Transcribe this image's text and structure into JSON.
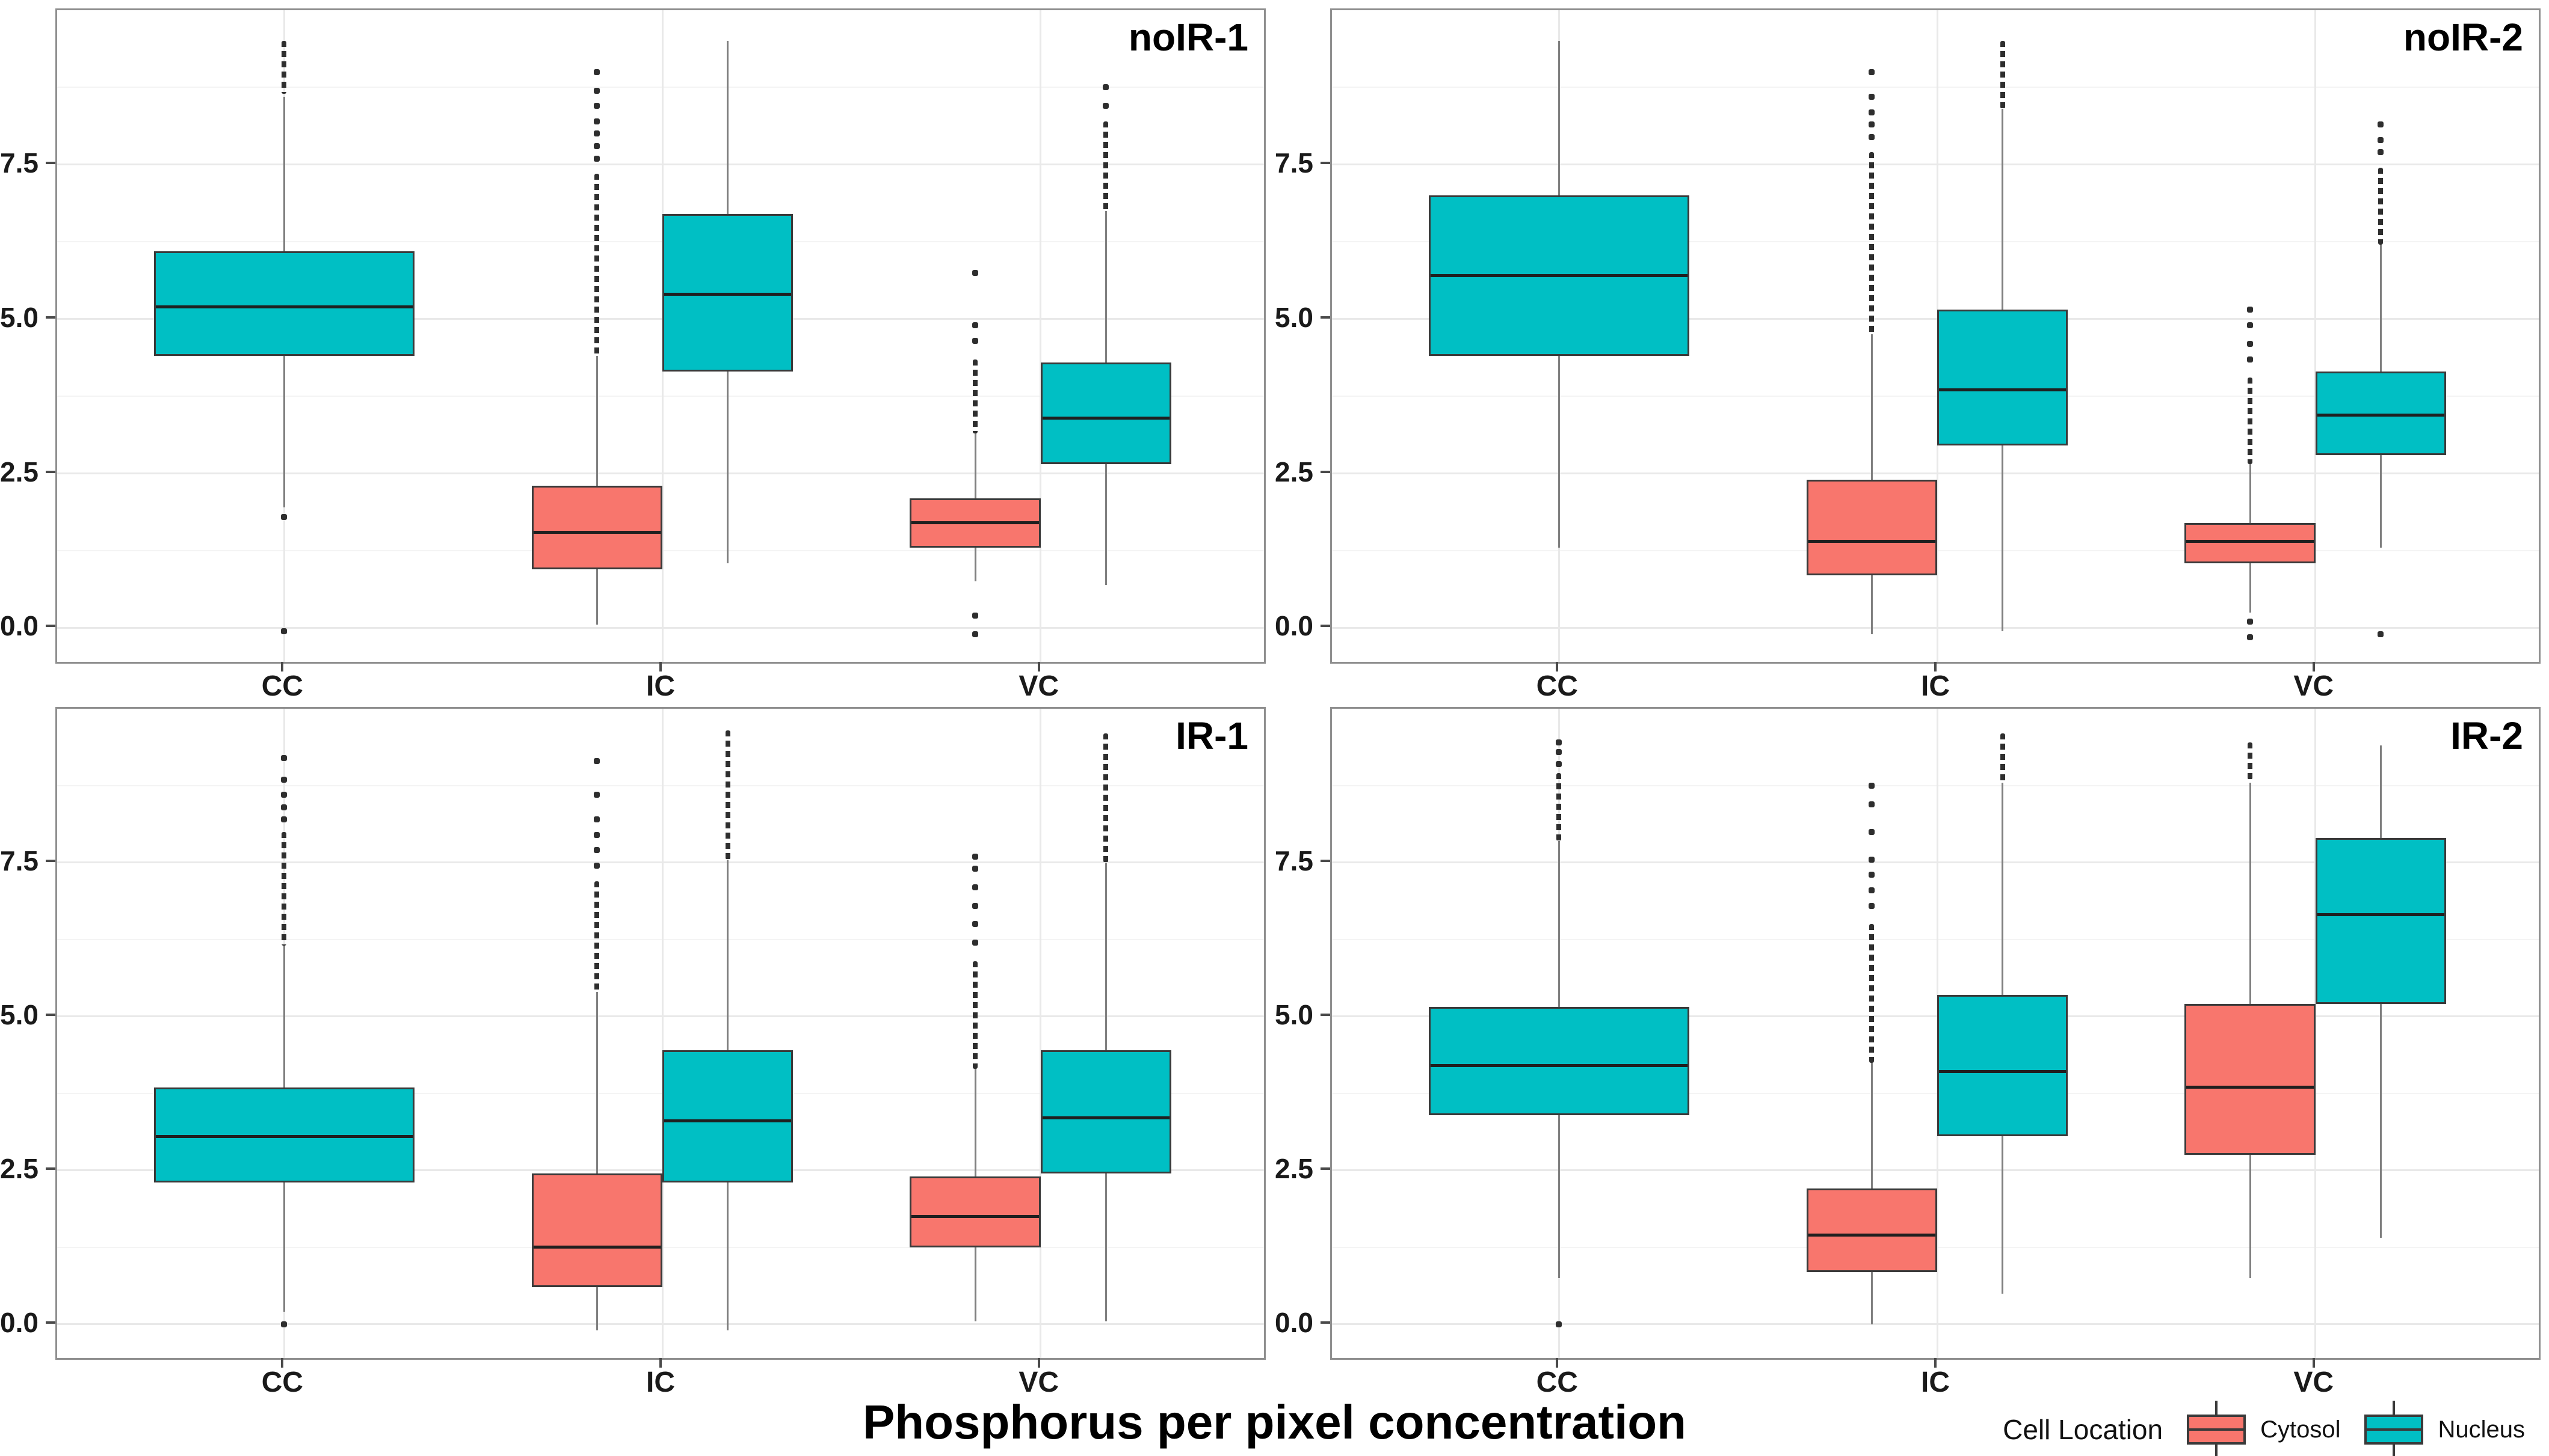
{
  "figure": {
    "x_axis_title": "Phosphorus per pixel concentration",
    "colors": {
      "cytosol": "#F8766D",
      "nucleus": "#00BFC4",
      "box_border": "#3a3a3a",
      "whisker": "#808080",
      "outlier": "#2e2e2e",
      "grid_major": "#e9e9e9",
      "grid_minor": "#f4f4f4",
      "panel_border": "#8f8f8f"
    },
    "legend": {
      "title": "Cell Location",
      "items": [
        {
          "label": "Cytosol",
          "color_key": "cytosol"
        },
        {
          "label": "Nucleus",
          "color_key": "nucleus"
        }
      ]
    }
  },
  "chart_data": {
    "type": "boxplot",
    "title": "",
    "xlabel": "Phosphorus per pixel concentration",
    "ylabel": "",
    "ylim": [
      -0.55,
      10.0
    ],
    "categories": [
      "CC",
      "IC",
      "VC"
    ],
    "series_names": [
      "Cytosol",
      "Nucleus"
    ],
    "y_ticks": [
      {
        "value": 7.5,
        "label": "7.5"
      },
      {
        "value": 5.0,
        "label": "5.0"
      },
      {
        "value": 2.5,
        "label": "2.5"
      },
      {
        "value": 0.0,
        "label": "0.0"
      }
    ],
    "y_minor_gridlines": [
      1.25,
      3.75,
      6.25,
      8.75
    ],
    "legend_position": "bottom-right",
    "grid": "faint major and minor horizontal, major vertical at category centers",
    "facets": [
      {
        "title": "noIR-1",
        "boxes": [
          {
            "category": "CC",
            "series": "Nucleus",
            "whisker_low": 1.95,
            "q1": 4.4,
            "median": 5.2,
            "q3": 6.1,
            "whisker_high": 8.6,
            "outlier_runs": [
              [
                8.65,
                9.5
              ]
            ],
            "outlier_points": [
              1.8,
              -0.05
            ]
          },
          {
            "category": "IC",
            "series": "Cytosol",
            "whisker_low": 0.05,
            "q1": 0.95,
            "median": 1.55,
            "q3": 2.3,
            "whisker_high": 4.4,
            "outlier_runs": [
              [
                4.4,
                7.35
              ]
            ],
            "outlier_points": [
              7.6,
              7.8,
              8.0,
              8.2,
              8.45,
              8.7,
              9.0
            ]
          },
          {
            "category": "IC",
            "series": "Nucleus",
            "whisker_low": 1.05,
            "q1": 4.15,
            "median": 5.4,
            "q3": 6.7,
            "whisker_high": 9.5,
            "outlier_runs": [],
            "outlier_points": []
          },
          {
            "category": "VC",
            "series": "Cytosol",
            "whisker_low": 0.75,
            "q1": 1.3,
            "median": 1.7,
            "q3": 2.1,
            "whisker_high": 3.15,
            "outlier_runs": [
              [
                3.15,
                4.35
              ]
            ],
            "outlier_points": [
              4.65,
              4.9,
              5.75,
              0.2,
              -0.1
            ]
          },
          {
            "category": "VC",
            "series": "Nucleus",
            "whisker_low": 0.7,
            "q1": 2.65,
            "median": 3.4,
            "q3": 4.3,
            "whisker_high": 6.75,
            "outlier_runs": [
              [
                6.75,
                8.2
              ]
            ],
            "outlier_points": [
              8.45,
              8.75
            ]
          }
        ]
      },
      {
        "title": "noIR-2",
        "boxes": [
          {
            "category": "CC",
            "series": "Nucleus",
            "whisker_low": 1.3,
            "q1": 4.4,
            "median": 5.7,
            "q3": 7.0,
            "whisker_high": 9.5,
            "outlier_runs": [],
            "outlier_points": []
          },
          {
            "category": "IC",
            "series": "Cytosol",
            "whisker_low": -0.1,
            "q1": 0.85,
            "median": 1.4,
            "q3": 2.4,
            "whisker_high": 4.75,
            "outlier_runs": [
              [
                4.75,
                7.7
              ]
            ],
            "outlier_points": [
              7.95,
              8.15,
              8.35,
              8.6,
              9.0
            ]
          },
          {
            "category": "IC",
            "series": "Nucleus",
            "whisker_low": -0.05,
            "q1": 2.95,
            "median": 3.85,
            "q3": 5.15,
            "whisker_high": 8.4,
            "outlier_runs": [
              [
                8.4,
                9.5
              ]
            ],
            "outlier_points": []
          },
          {
            "category": "VC",
            "series": "Cytosol",
            "whisker_low": 0.25,
            "q1": 1.05,
            "median": 1.4,
            "q3": 1.7,
            "whisker_high": 2.65,
            "outlier_runs": [
              [
                2.65,
                4.05
              ]
            ],
            "outlier_points": [
              4.35,
              4.6,
              4.9,
              5.15,
              0.1,
              -0.15
            ]
          },
          {
            "category": "VC",
            "series": "Nucleus",
            "whisker_low": 1.3,
            "q1": 2.8,
            "median": 3.45,
            "q3": 4.15,
            "whisker_high": 6.2,
            "outlier_runs": [
              [
                6.2,
                7.45
              ]
            ],
            "outlier_points": [
              7.7,
              7.9,
              8.15,
              -0.1
            ]
          }
        ]
      },
      {
        "title": "IR-1",
        "boxes": [
          {
            "category": "CC",
            "series": "Nucleus",
            "whisker_low": 0.2,
            "q1": 2.3,
            "median": 3.05,
            "q3": 3.85,
            "whisker_high": 6.15,
            "outlier_runs": [
              [
                6.15,
                8.0
              ]
            ],
            "outlier_points": [
              8.2,
              8.4,
              8.6,
              8.85,
              9.2,
              0.0
            ]
          },
          {
            "category": "IC",
            "series": "Cytosol",
            "whisker_low": -0.1,
            "q1": 0.6,
            "median": 1.25,
            "q3": 2.45,
            "whisker_high": 5.4,
            "outlier_runs": [
              [
                5.4,
                7.2
              ]
            ],
            "outlier_points": [
              7.45,
              7.7,
              7.95,
              8.2,
              8.6,
              9.15
            ]
          },
          {
            "category": "IC",
            "series": "Nucleus",
            "whisker_low": -0.1,
            "q1": 2.3,
            "median": 3.3,
            "q3": 4.45,
            "whisker_high": 7.55,
            "outlier_runs": [
              [
                7.55,
                9.65
              ]
            ],
            "outlier_points": []
          },
          {
            "category": "VC",
            "series": "Cytosol",
            "whisker_low": 0.05,
            "q1": 1.25,
            "median": 1.75,
            "q3": 2.4,
            "whisker_high": 4.15,
            "outlier_runs": [
              [
                4.15,
                5.9
              ]
            ],
            "outlier_points": [
              6.2,
              6.5,
              6.8,
              7.1,
              7.4,
              7.6
            ]
          },
          {
            "category": "VC",
            "series": "Nucleus",
            "whisker_low": 0.05,
            "q1": 2.45,
            "median": 3.35,
            "q3": 4.45,
            "whisker_high": 7.5,
            "outlier_runs": [
              [
                7.5,
                9.6
              ]
            ],
            "outlier_points": []
          }
        ]
      },
      {
        "title": "IR-2",
        "boxes": [
          {
            "category": "CC",
            "series": "Nucleus",
            "whisker_low": 0.75,
            "q1": 3.4,
            "median": 4.2,
            "q3": 5.15,
            "whisker_high": 7.85,
            "outlier_runs": [
              [
                7.85,
                8.95
              ]
            ],
            "outlier_points": [
              9.1,
              9.3,
              9.45,
              0.0
            ]
          },
          {
            "category": "IC",
            "series": "Cytosol",
            "whisker_low": 0.0,
            "q1": 0.85,
            "median": 1.45,
            "q3": 2.2,
            "whisker_high": 4.25,
            "outlier_runs": [
              [
                4.25,
                6.5
              ]
            ],
            "outlier_points": [
              6.8,
              7.05,
              7.3,
              7.55,
              8.0,
              8.45,
              8.75
            ]
          },
          {
            "category": "IC",
            "series": "Nucleus",
            "whisker_low": 0.5,
            "q1": 3.05,
            "median": 4.1,
            "q3": 5.35,
            "whisker_high": 8.8,
            "outlier_runs": [
              [
                8.8,
                9.6
              ]
            ],
            "outlier_points": []
          },
          {
            "category": "VC",
            "series": "Cytosol",
            "whisker_low": 0.75,
            "q1": 2.75,
            "median": 3.85,
            "q3": 5.2,
            "whisker_high": 8.8,
            "outlier_runs": [
              [
                8.85,
                9.45
              ]
            ],
            "outlier_points": []
          },
          {
            "category": "VC",
            "series": "Nucleus",
            "whisker_low": 1.4,
            "q1": 5.2,
            "median": 6.65,
            "q3": 7.9,
            "whisker_high": 9.4,
            "outlier_runs": [],
            "outlier_points": []
          }
        ]
      }
    ]
  }
}
